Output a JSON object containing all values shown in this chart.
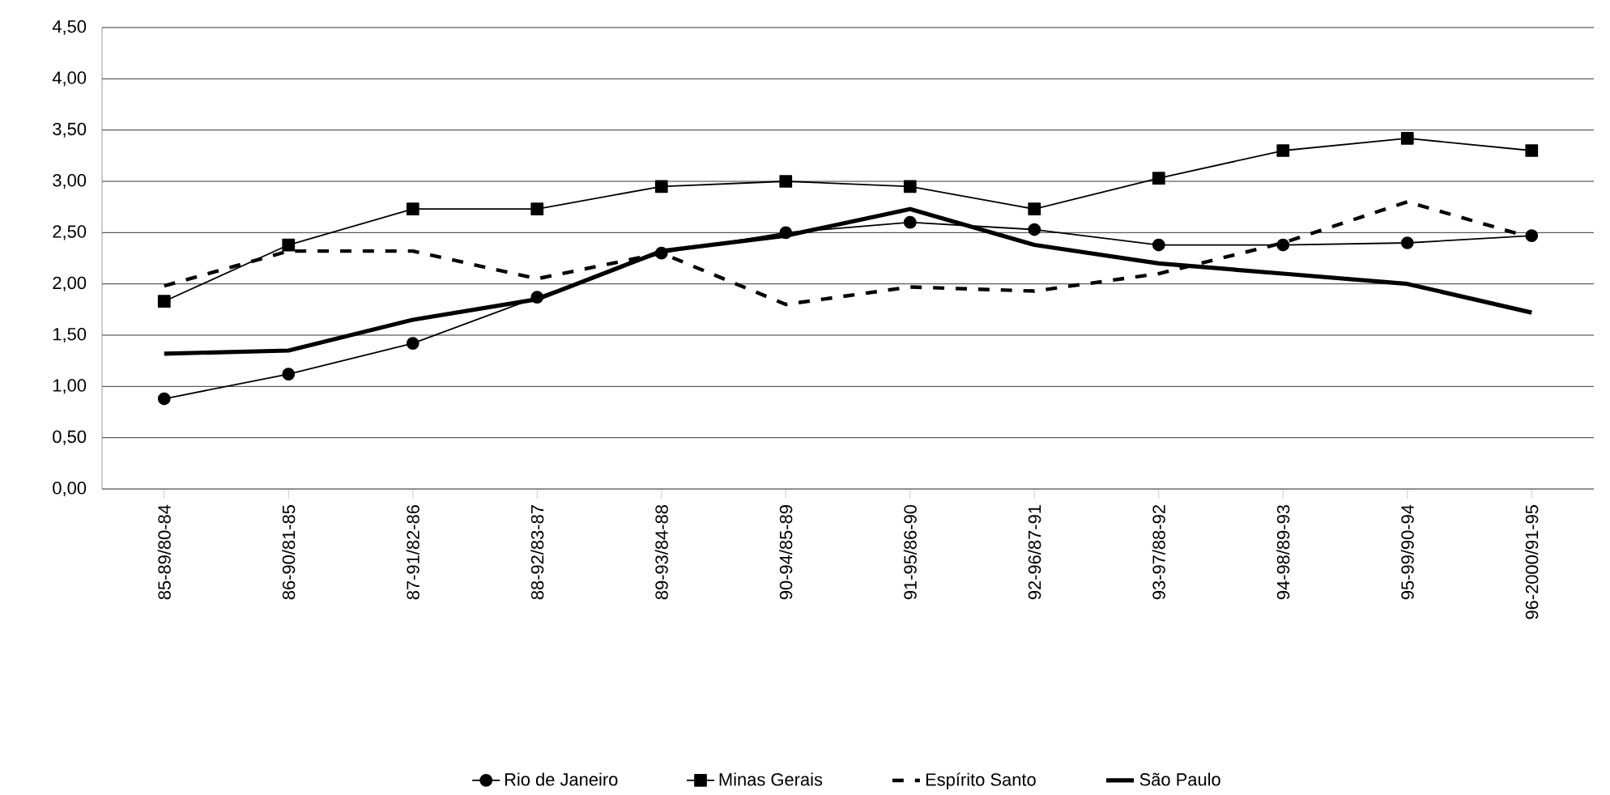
{
  "chart_data": {
    "type": "line",
    "categories": [
      "85-89/80-84",
      "86-90/81-85",
      "87-91/82-86",
      "88-92/83-87",
      "89-93/84-88",
      "90-94/85-89",
      "91-95/86-90",
      "92-96/87-91",
      "93-97/88-92",
      "94-98/89-93",
      "95-99/90-94",
      "96-2000/91-95"
    ],
    "series": [
      {
        "name": "Rio de Janeiro",
        "color": "#000000",
        "marker": "circle",
        "line_style": "solid",
        "values": [
          0.88,
          1.12,
          1.42,
          1.87,
          2.3,
          2.5,
          2.6,
          2.53,
          2.38,
          2.38,
          2.4,
          2.47
        ]
      },
      {
        "name": "Minas Gerais",
        "color": "#000000",
        "marker": "square",
        "line_style": "solid",
        "values": [
          1.83,
          2.38,
          2.73,
          2.73,
          2.95,
          3.0,
          2.95,
          2.73,
          3.03,
          3.3,
          3.42,
          3.3
        ]
      },
      {
        "name": "Espírito Santo",
        "color": "#000000",
        "marker": "none",
        "line_style": "dashed",
        "values": [
          1.98,
          2.32,
          2.32,
          2.05,
          2.3,
          1.8,
          1.97,
          1.93,
          2.1,
          2.4,
          2.8,
          2.45
        ]
      },
      {
        "name": "São Paulo",
        "color": "#000000",
        "marker": "none",
        "line_style": "solid",
        "values": [
          1.32,
          1.35,
          1.65,
          1.85,
          2.32,
          2.47,
          2.73,
          2.38,
          2.2,
          2.1,
          2.0,
          1.72
        ]
      }
    ],
    "ylim": [
      0,
      4.5
    ],
    "yticks": [
      {
        "value": 0,
        "label": "0,00"
      },
      {
        "value": 0.5,
        "label": "0,50"
      },
      {
        "value": 1,
        "label": "1,00"
      },
      {
        "value": 1.5,
        "label": "1,50"
      },
      {
        "value": 2,
        "label": "2,00"
      },
      {
        "value": 2.5,
        "label": "2,50"
      },
      {
        "value": 3,
        "label": "3,00"
      },
      {
        "value": 3.5,
        "label": "3,50"
      },
      {
        "value": 4,
        "label": "4,00"
      },
      {
        "value": 4.5,
        "label": "4,50"
      }
    ],
    "grid": "y",
    "legend": "bottom"
  }
}
